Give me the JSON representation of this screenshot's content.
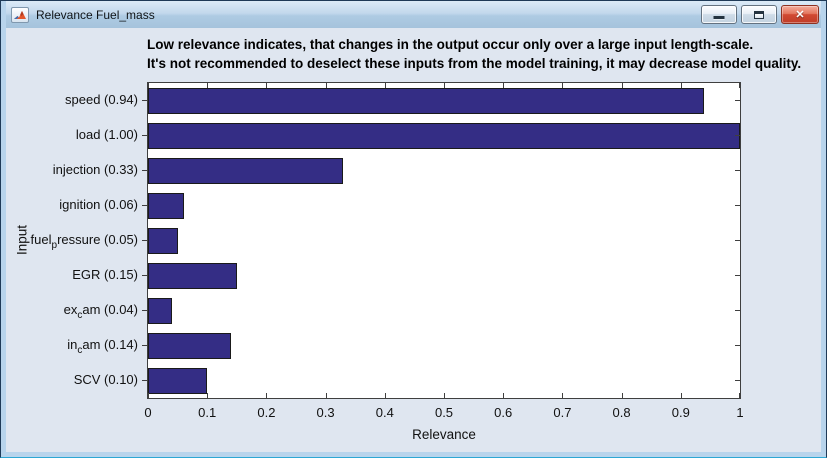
{
  "window": {
    "title": "Relevance Fuel_mass",
    "buttons": {
      "minimize": "minimize",
      "maximize": "maximize",
      "close": "close"
    }
  },
  "icons": {
    "close_glyph": "✕",
    "app_icon": "matlab-logo-icon"
  },
  "colors": {
    "bar_fill": "#342d85",
    "bar_edge": "#1a1a1a",
    "figure_bg": "#dfe6f0",
    "plot_bg": "#ffffff",
    "axis": "#3f3f3f",
    "titlebar_close": "#d14a33"
  },
  "chart_data": {
    "type": "bar",
    "orientation": "horizontal",
    "title_lines": [
      "Low relevance indicates, that changes in the output occur only over a large input length-scale.",
      "It's not recommended to deselect these inputs from the model training, it may decrease model quality."
    ],
    "categories": [
      "speed (0.94)",
      "load (1.00)",
      "injection (0.33)",
      "ignition (0.06)",
      "fuel_pressure (0.05)",
      "EGR (0.15)",
      "ex_cam (0.04)",
      "in_cam (0.14)",
      "SCV (0.10)"
    ],
    "category_labels": [
      {
        "pre": "speed (0.94)",
        "sub": "",
        "post": ""
      },
      {
        "pre": "load (1.00)",
        "sub": "",
        "post": ""
      },
      {
        "pre": "injection (0.33)",
        "sub": "",
        "post": ""
      },
      {
        "pre": "ignition (0.06)",
        "sub": "",
        "post": ""
      },
      {
        "pre": "fuel",
        "sub": "p",
        "post": "ressure (0.05)"
      },
      {
        "pre": "EGR (0.15)",
        "sub": "",
        "post": ""
      },
      {
        "pre": "ex",
        "sub": "c",
        "post": "am (0.04)"
      },
      {
        "pre": "in",
        "sub": "c",
        "post": "am (0.14)"
      },
      {
        "pre": "SCV (0.10)",
        "sub": "",
        "post": ""
      }
    ],
    "values": [
      0.94,
      1.0,
      0.33,
      0.06,
      0.05,
      0.15,
      0.04,
      0.14,
      0.1
    ],
    "xlabel": "Relevance",
    "ylabel": "Input",
    "xlim": [
      0,
      1
    ],
    "xticks": [
      0,
      0.1,
      0.2,
      0.3,
      0.4,
      0.5,
      0.6,
      0.7,
      0.8,
      0.9,
      1
    ],
    "xtick_labels": [
      "0",
      "0.1",
      "0.2",
      "0.3",
      "0.4",
      "0.5",
      "0.6",
      "0.7",
      "0.8",
      "0.9",
      "1"
    ],
    "grid": false,
    "legend": null,
    "bar_color": "#342d85",
    "bar_edge_color": "#1a1a1a"
  }
}
